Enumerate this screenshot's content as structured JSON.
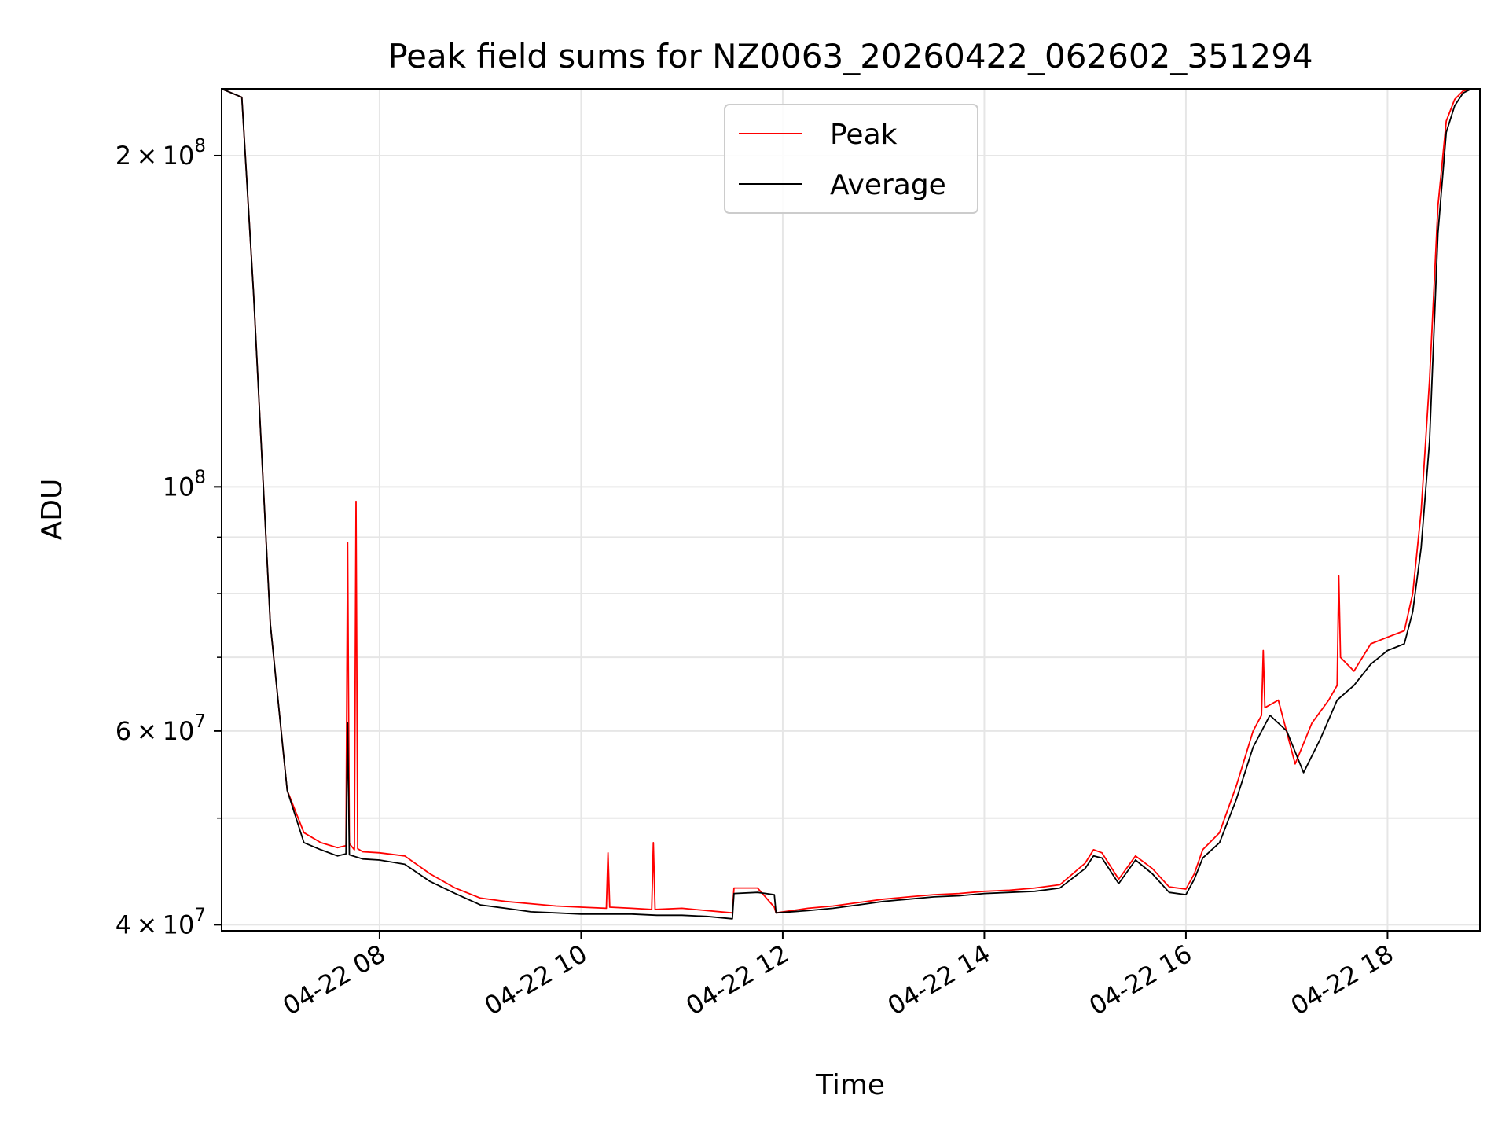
{
  "chart_data": {
    "type": "line",
    "title": "Peak field sums for NZ0063_20260422_062602_351294",
    "xlabel": "Time",
    "ylabel": "ADU",
    "yscale": "log",
    "xlim": [
      "04-22 06:26",
      "04-22 18:55"
    ],
    "ylim": [
      39500000,
      230000000
    ],
    "x_ticks": [
      {
        "value": "04-22 08:00",
        "label": "04-22 08"
      },
      {
        "value": "04-22 10:00",
        "label": "04-22 10"
      },
      {
        "value": "04-22 12:00",
        "label": "04-22 12"
      },
      {
        "value": "04-22 14:00",
        "label": "04-22 14"
      },
      {
        "value": "04-22 16:00",
        "label": "04-22 16"
      },
      {
        "value": "04-22 18:00",
        "label": "04-22 18"
      }
    ],
    "y_ticks_major": [
      {
        "value": 40000000,
        "base": "4",
        "exp": "7"
      },
      {
        "value": 60000000,
        "base": "6",
        "exp": "7"
      },
      {
        "value": 100000000,
        "base": "",
        "exp": "8"
      },
      {
        "value": 200000000,
        "base": "2",
        "exp": "8"
      }
    ],
    "y_ticks_minor": [
      50000000,
      70000000,
      80000000,
      90000000
    ],
    "grid": true,
    "legend": {
      "placement": "upper center"
    },
    "series": [
      {
        "name": "Peak",
        "color": "#ff0000",
        "x": [
          "04-22 06:26",
          "04-22 06:38",
          "04-22 06:45",
          "04-22 06:55",
          "04-22 07:05",
          "04-22 07:15",
          "04-22 07:25",
          "04-22 07:35",
          "04-22 07:40",
          "04-22 07:41",
          "04-22 07:42",
          "04-22 07:45",
          "04-22 07:46",
          "04-22 07:47",
          "04-22 07:50",
          "04-22 08:00",
          "04-22 08:15",
          "04-22 08:30",
          "04-22 08:45",
          "04-22 09:00",
          "04-22 09:15",
          "04-22 09:30",
          "04-22 09:45",
          "04-22 10:00",
          "04-22 10:15",
          "04-22 10:16",
          "04-22 10:17",
          "04-22 10:30",
          "04-22 10:42",
          "04-22 10:43",
          "04-22 10:44",
          "04-22 11:00",
          "04-22 11:15",
          "04-22 11:30",
          "04-22 11:31",
          "04-22 11:45",
          "04-22 11:55",
          "04-22 11:56",
          "04-22 12:15",
          "04-22 12:30",
          "04-22 12:45",
          "04-22 13:00",
          "04-22 13:15",
          "04-22 13:30",
          "04-22 13:45",
          "04-22 14:00",
          "04-22 14:15",
          "04-22 14:30",
          "04-22 14:45",
          "04-22 15:00",
          "04-22 15:05",
          "04-22 15:10",
          "04-22 15:20",
          "04-22 15:30",
          "04-22 15:40",
          "04-22 15:50",
          "04-22 16:00",
          "04-22 16:05",
          "04-22 16:10",
          "04-22 16:20",
          "04-22 16:30",
          "04-22 16:40",
          "04-22 16:45",
          "04-22 16:46",
          "04-22 16:47",
          "04-22 16:55",
          "04-22 17:05",
          "04-22 17:15",
          "04-22 17:25",
          "04-22 17:30",
          "04-22 17:31",
          "04-22 17:32",
          "04-22 17:40",
          "04-22 17:50",
          "04-22 18:00",
          "04-22 18:10",
          "04-22 18:15",
          "04-22 18:20",
          "04-22 18:25",
          "04-22 18:30",
          "04-22 18:35",
          "04-22 18:40",
          "04-22 18:45",
          "04-22 18:50",
          "04-22 18:55"
        ],
        "y": [
          230000000,
          226000000,
          150000000,
          75000000,
          53000000,
          48500000,
          47500000,
          47000000,
          47200000,
          89000000,
          47400000,
          46800000,
          97000000,
          46900000,
          46600000,
          46500000,
          46200000,
          44500000,
          43200000,
          42300000,
          42000000,
          41800000,
          41600000,
          41500000,
          41400000,
          46500000,
          41500000,
          41400000,
          41300000,
          47500000,
          41300000,
          41400000,
          41200000,
          41000000,
          43200000,
          43200000,
          41500000,
          41000000,
          41400000,
          41600000,
          41900000,
          42200000,
          42400000,
          42600000,
          42700000,
          42900000,
          43000000,
          43200000,
          43500000,
          45500000,
          46800000,
          46500000,
          44000000,
          46200000,
          45000000,
          43300000,
          43100000,
          44500000,
          46800000,
          48500000,
          53500000,
          60000000,
          62000000,
          71000000,
          63000000,
          64000000,
          56000000,
          61000000,
          64000000,
          66000000,
          83000000,
          70000000,
          68000000,
          72000000,
          73000000,
          74000000,
          80000000,
          95000000,
          125000000,
          180000000,
          215000000,
          225000000,
          229000000,
          230000000,
          230000000
        ]
      },
      {
        "name": "Average",
        "color": "#000000",
        "x": [
          "04-22 06:26",
          "04-22 06:38",
          "04-22 06:45",
          "04-22 06:55",
          "04-22 07:05",
          "04-22 07:15",
          "04-22 07:25",
          "04-22 07:35",
          "04-22 07:40",
          "04-22 07:41",
          "04-22 07:42",
          "04-22 07:50",
          "04-22 08:00",
          "04-22 08:15",
          "04-22 08:30",
          "04-22 08:45",
          "04-22 09:00",
          "04-22 09:15",
          "04-22 09:30",
          "04-22 09:45",
          "04-22 10:00",
          "04-22 10:15",
          "04-22 10:30",
          "04-22 10:45",
          "04-22 11:00",
          "04-22 11:15",
          "04-22 11:30",
          "04-22 11:31",
          "04-22 11:45",
          "04-22 11:55",
          "04-22 11:56",
          "04-22 12:15",
          "04-22 12:30",
          "04-22 12:45",
          "04-22 13:00",
          "04-22 13:15",
          "04-22 13:30",
          "04-22 13:45",
          "04-22 14:00",
          "04-22 14:15",
          "04-22 14:30",
          "04-22 14:45",
          "04-22 15:00",
          "04-22 15:05",
          "04-22 15:10",
          "04-22 15:20",
          "04-22 15:30",
          "04-22 15:40",
          "04-22 15:50",
          "04-22 16:00",
          "04-22 16:05",
          "04-22 16:10",
          "04-22 16:20",
          "04-22 16:30",
          "04-22 16:40",
          "04-22 16:50",
          "04-22 17:00",
          "04-22 17:10",
          "04-22 17:20",
          "04-22 17:30",
          "04-22 17:40",
          "04-22 17:50",
          "04-22 18:00",
          "04-22 18:10",
          "04-22 18:15",
          "04-22 18:20",
          "04-22 18:25",
          "04-22 18:30",
          "04-22 18:35",
          "04-22 18:40",
          "04-22 18:45",
          "04-22 18:50",
          "04-22 18:55"
        ],
        "y": [
          230000000,
          226000000,
          150000000,
          75000000,
          53000000,
          47500000,
          46800000,
          46200000,
          46400000,
          61000000,
          46300000,
          45900000,
          45800000,
          45400000,
          43800000,
          42700000,
          41700000,
          41400000,
          41100000,
          41000000,
          40900000,
          40900000,
          40900000,
          40800000,
          40800000,
          40700000,
          40500000,
          42700000,
          42800000,
          42600000,
          41000000,
          41200000,
          41400000,
          41700000,
          42000000,
          42200000,
          42400000,
          42500000,
          42700000,
          42800000,
          42900000,
          43200000,
          45000000,
          46200000,
          46000000,
          43600000,
          45800000,
          44500000,
          42800000,
          42600000,
          44000000,
          46000000,
          47500000,
          52000000,
          58000000,
          62000000,
          60000000,
          55000000,
          59000000,
          64000000,
          66000000,
          69000000,
          71000000,
          72000000,
          77000000,
          88000000,
          110000000,
          170000000,
          210000000,
          222000000,
          228000000,
          230000000,
          230000000
        ]
      }
    ]
  }
}
